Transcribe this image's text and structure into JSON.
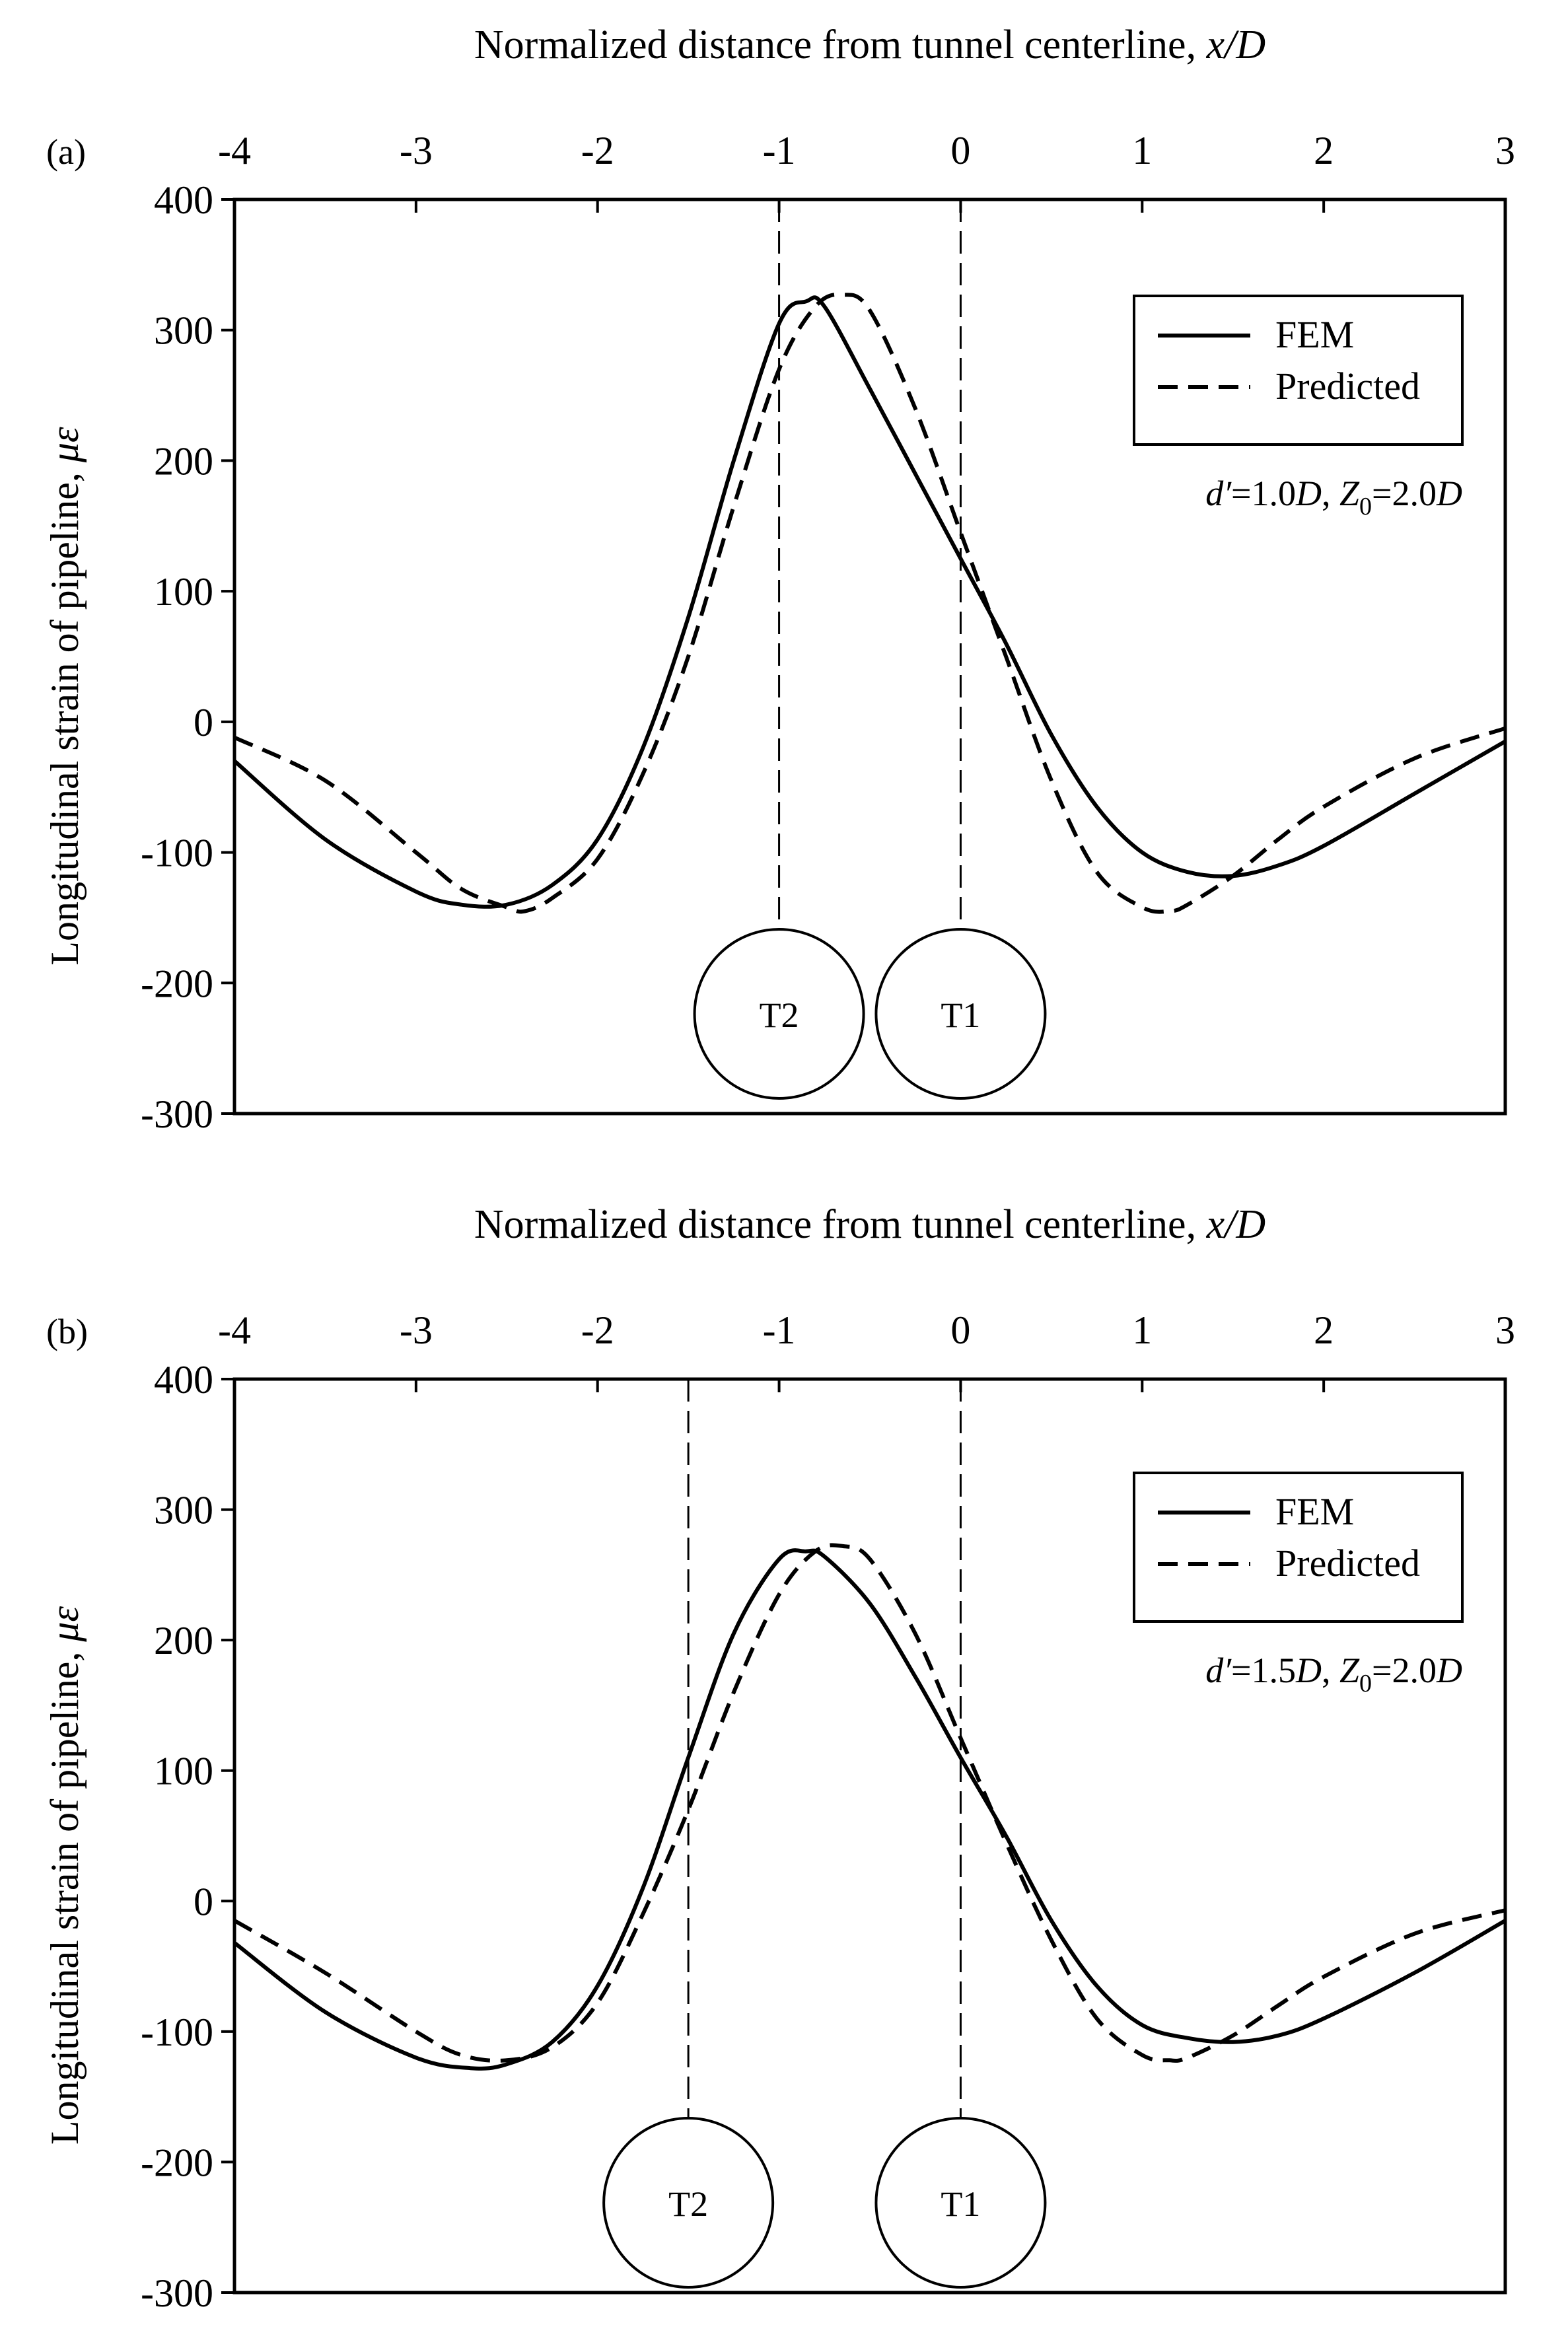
{
  "chart_data": [
    {
      "type": "line",
      "panel_label": "(a)",
      "xlabel": "Normalized distance from tunnel centerline,",
      "xlabel_var": "x/D",
      "ylabel": "Longitudinal strain of pipeline,",
      "ylabel_var": "με",
      "xlim": [
        -4,
        3
      ],
      "ylim": [
        -300,
        400
      ],
      "xticks": [
        "-4",
        "-3",
        "-2",
        "-1",
        "0",
        "1",
        "2",
        "3"
      ],
      "yticks": [
        "400",
        "300",
        "200",
        "100",
        "0",
        "-100",
        "-200",
        "-300"
      ],
      "legend": [
        "FEM",
        "Predicted"
      ],
      "legend_position": "top-right",
      "annotation": {
        "d_prefix": "d′",
        "d_value": "=1.0",
        "d_unit": "D",
        "sep": ", ",
        "z_main": "Z",
        "z_sub": "0",
        "z_value": "=2.0",
        "z_unit": "D"
      },
      "tunnels": [
        {
          "label": "T2",
          "x": -1.0
        },
        {
          "label": "T1",
          "x": 0.0
        }
      ],
      "series": [
        {
          "name": "FEM",
          "style": "solid",
          "x": [
            -4.0,
            -3.5,
            -3.0,
            -2.75,
            -2.5,
            -2.25,
            -2.0,
            -1.75,
            -1.5,
            -1.25,
            -1.0,
            -0.85,
            -0.75,
            -0.5,
            -0.25,
            0.0,
            0.25,
            0.5,
            0.75,
            1.0,
            1.25,
            1.5,
            1.75,
            2.0,
            2.5,
            3.0
          ],
          "y": [
            -30,
            -90,
            -130,
            -140,
            -140,
            -125,
            -90,
            -20,
            80,
            200,
            305,
            322,
            318,
            255,
            190,
            125,
            60,
            -10,
            -65,
            -100,
            -115,
            -118,
            -110,
            -95,
            -55,
            -15
          ]
        },
        {
          "name": "Predicted",
          "style": "dashed",
          "x": [
            -4.0,
            -3.5,
            -3.0,
            -2.75,
            -2.5,
            -2.4,
            -2.25,
            -2.0,
            -1.75,
            -1.5,
            -1.25,
            -1.0,
            -0.8,
            -0.65,
            -0.5,
            -0.25,
            0.0,
            0.25,
            0.5,
            0.75,
            1.0,
            1.15,
            1.25,
            1.5,
            1.75,
            2.0,
            2.5,
            3.0
          ],
          "y": [
            -12,
            -45,
            -100,
            -128,
            -142,
            -145,
            -135,
            -105,
            -40,
            50,
            165,
            270,
            318,
            327,
            315,
            240,
            145,
            50,
            -45,
            -115,
            -142,
            -145,
            -140,
            -118,
            -90,
            -65,
            -28,
            -5
          ]
        }
      ]
    },
    {
      "type": "line",
      "panel_label": "(b)",
      "xlabel": "Normalized distance from tunnel centerline,",
      "xlabel_var": "x/D",
      "ylabel": "Longitudinal strain of pipeline,",
      "ylabel_var": "με",
      "xlim": [
        -4,
        3
      ],
      "ylim": [
        -300,
        400
      ],
      "xticks": [
        "-4",
        "-3",
        "-2",
        "-1",
        "0",
        "1",
        "2",
        "3"
      ],
      "yticks": [
        "400",
        "300",
        "200",
        "100",
        "0",
        "-100",
        "-200",
        "-300"
      ],
      "legend": [
        "FEM",
        "Predicted"
      ],
      "legend_position": "top-right",
      "annotation": {
        "d_prefix": "d′",
        "d_value": "=1.5",
        "d_unit": "D",
        "sep": ", ",
        "z_main": "Z",
        "z_sub": "0",
        "z_value": "=2.0",
        "z_unit": "D"
      },
      "tunnels": [
        {
          "label": "T2",
          "x": -1.5
        },
        {
          "label": "T1",
          "x": 0.0
        }
      ],
      "series": [
        {
          "name": "FEM",
          "style": "solid",
          "x": [
            -4.0,
            -3.5,
            -3.0,
            -2.7,
            -2.5,
            -2.25,
            -2.0,
            -1.75,
            -1.5,
            -1.25,
            -1.0,
            -0.85,
            -0.75,
            -0.5,
            -0.25,
            0.0,
            0.25,
            0.5,
            0.75,
            1.0,
            1.25,
            1.5,
            1.75,
            2.0,
            2.5,
            3.0
          ],
          "y": [
            -32,
            -85,
            -120,
            -128,
            -125,
            -108,
            -65,
            10,
            110,
            205,
            262,
            268,
            264,
            228,
            172,
            110,
            50,
            -15,
            -65,
            -95,
            -105,
            -108,
            -103,
            -90,
            -55,
            -15
          ],
          "note": "FEM curve"
        },
        {
          "name": "Predicted",
          "style": "dashed",
          "x": [
            -4.0,
            -3.5,
            -3.0,
            -2.75,
            -2.5,
            -2.25,
            -2.0,
            -1.75,
            -1.5,
            -1.25,
            -1.0,
            -0.8,
            -0.65,
            -0.5,
            -0.25,
            0.0,
            0.25,
            0.5,
            0.75,
            1.0,
            1.15,
            1.25,
            1.5,
            1.75,
            2.0,
            2.5,
            3.0
          ],
          "y": [
            -15,
            -55,
            -100,
            -118,
            -122,
            -112,
            -78,
            -10,
            70,
            160,
            235,
            268,
            272,
            262,
            205,
            125,
            45,
            -30,
            -90,
            -118,
            -122,
            -120,
            -103,
            -80,
            -58,
            -25,
            -7
          ]
        }
      ]
    }
  ]
}
